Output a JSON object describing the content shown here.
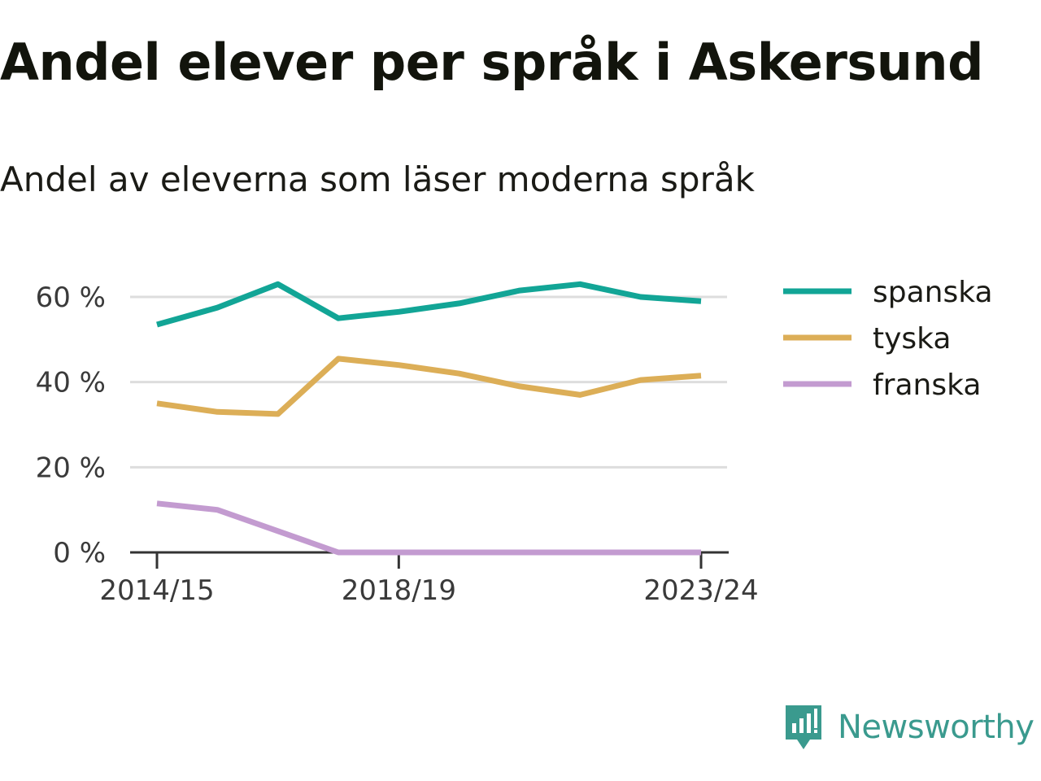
{
  "title": "Andel elever per språk i Askersund",
  "subtitle": "Andel av eleverna som läser moderna språk",
  "brand": {
    "name": "Newsworthy",
    "icon": "newsworthy-logo-icon",
    "color": "#3a9a8e"
  },
  "chart_data": {
    "type": "line",
    "x": [
      "2014/15",
      "2015/16",
      "2016/17",
      "2017/18",
      "2018/19",
      "2019/20",
      "2020/21",
      "2021/22",
      "2022/23",
      "2023/24"
    ],
    "x_tick_labels": [
      "2014/15",
      "2018/19",
      "2023/24"
    ],
    "y_ticks": [
      0,
      20,
      40,
      60
    ],
    "y_tick_labels": [
      "0 %",
      "20 %",
      "40 %",
      "60 %"
    ],
    "ylim": [
      0,
      63
    ],
    "grid": true,
    "legend_position": "right",
    "series": [
      {
        "name": "spanska",
        "color": "#12a596",
        "values": [
          53.5,
          57.5,
          63,
          55,
          56.5,
          58.5,
          61.5,
          63,
          60,
          59
        ]
      },
      {
        "name": "tyska",
        "color": "#dcae57",
        "values": [
          35,
          33,
          32.5,
          45.5,
          44,
          42,
          39,
          37,
          40.5,
          41.5
        ]
      },
      {
        "name": "franska",
        "color": "#c39bd0",
        "values": [
          11.5,
          10,
          5,
          0,
          0,
          0,
          0,
          0,
          0,
          0
        ]
      }
    ]
  }
}
